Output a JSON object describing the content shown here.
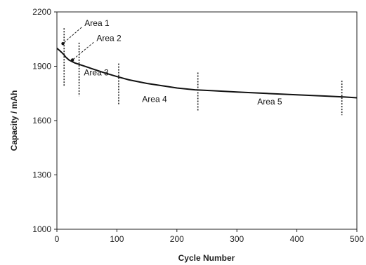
{
  "chart_data": {
    "type": "line",
    "xlabel": "Cycle Number",
    "ylabel": "Capacity / mAh",
    "xlim": [
      0,
      500
    ],
    "ylim": [
      1000,
      2200
    ],
    "xticks": [
      "0",
      "100",
      "200",
      "300",
      "400",
      "500"
    ],
    "yticks": [
      "1000",
      "1300",
      "1600",
      "1900",
      "2200"
    ],
    "grid": false,
    "series": [
      {
        "x": [
          0,
          5,
          10,
          15,
          20,
          30,
          40,
          60,
          80,
          100,
          120,
          150,
          180,
          200,
          230,
          260,
          300,
          350,
          400,
          450,
          480,
          500
        ],
        "y": [
          2000,
          1985,
          1970,
          1950,
          1935,
          1918,
          1907,
          1885,
          1863,
          1843,
          1825,
          1805,
          1790,
          1780,
          1770,
          1765,
          1758,
          1750,
          1742,
          1735,
          1730,
          1726
        ]
      }
    ],
    "boundaries": [
      {
        "x": 12,
        "ymin": 1790,
        "ymax": 2110
      },
      {
        "x": 37,
        "ymin": 1735,
        "ymax": 2030
      },
      {
        "x": 103,
        "ymin": 1690,
        "ymax": 1915
      },
      {
        "x": 235,
        "ymin": 1655,
        "ymax": 1865
      },
      {
        "x": 475,
        "ymin": 1630,
        "ymax": 1820
      }
    ],
    "annotations": [
      {
        "text": "Area 1",
        "x": 46,
        "y": 2123,
        "arrow_to": {
          "x": 10,
          "y": 2025
        }
      },
      {
        "text": "Area 2",
        "x": 66,
        "y": 2040,
        "arrow_to": {
          "x": 26,
          "y": 1935
        }
      },
      {
        "text": "Area 3",
        "x": 45,
        "y": 1850,
        "arrow_to": null
      },
      {
        "text": "Area 4",
        "x": 142,
        "y": 1703,
        "arrow_to": null
      },
      {
        "text": "Area 5",
        "x": 334,
        "y": 1690,
        "arrow_to": null
      }
    ]
  }
}
